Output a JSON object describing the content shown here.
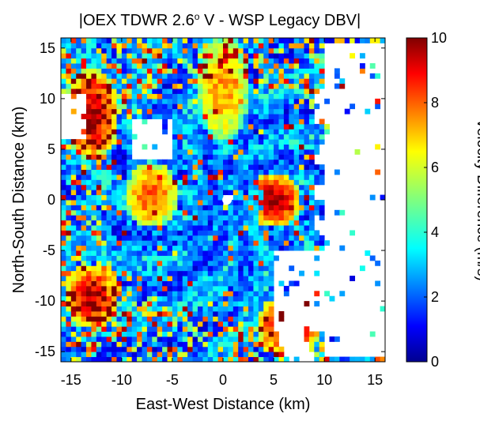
{
  "chart_data": {
    "type": "heatmap",
    "title": {
      "prefix": "|OEX TDWR 2.6",
      "superscript": "o",
      "suffix": " V - WSP Legacy DBV|"
    },
    "xlabel": "East-West Distance (km)",
    "ylabel": "North-South Distance (km)",
    "colorbar_label": "Velocity Difference (m/s)",
    "xlim": [
      -16,
      16
    ],
    "ylim": [
      -16,
      16
    ],
    "clim": [
      0,
      10
    ],
    "x_ticks": [
      -15,
      -10,
      -5,
      0,
      5,
      10,
      15
    ],
    "y_ticks": [
      -15,
      -10,
      -5,
      0,
      5,
      10,
      15
    ],
    "colorbar_ticks": [
      0,
      2,
      4,
      6,
      8,
      10
    ],
    "x_tick_labels": [
      "-15",
      "-10",
      "-5",
      "0",
      "5",
      "10",
      "15"
    ],
    "y_tick_labels": [
      "-15",
      "-10",
      "-5",
      "0",
      "5",
      "10",
      "15"
    ],
    "colorbar_tick_labels": [
      "0",
      "2",
      "4",
      "6",
      "8",
      "10"
    ],
    "colormap": "jet",
    "radar_center_km": [
      0.4,
      0.0
    ],
    "high_difference_regions": [
      {
        "x": [
          3,
          7
        ],
        "y": [
          -2,
          2
        ],
        "level": 8.8
      },
      {
        "x": [
          -15,
          -11
        ],
        "y": [
          5,
          12
        ],
        "level": 8.5
      },
      {
        "x": [
          -15,
          -11
        ],
        "y": [
          -12,
          -7
        ],
        "level": 8.4
      },
      {
        "x": [
          4,
          9
        ],
        "y": [
          -15,
          -10
        ],
        "level": 8.3
      },
      {
        "x": [
          -2,
          2
        ],
        "y": [
          7,
          15
        ],
        "level": 6.5
      },
      {
        "x": [
          -9,
          -5
        ],
        "y": [
          -2,
          3
        ],
        "level": 7.2
      }
    ],
    "missing_regions": [
      {
        "x": [
          10,
          16
        ],
        "y": [
          -15.5,
          15.5
        ]
      },
      {
        "x": [
          -9,
          -5
        ],
        "y": [
          4,
          8
        ]
      },
      {
        "x": [
          -16,
          -13.5
        ],
        "y": [
          6,
          10.5
        ]
      },
      {
        "x": [
          5,
          10
        ],
        "y": [
          -13,
          -5
        ]
      },
      {
        "x": [
          -0.1,
          0.9
        ],
        "y": [
          -0.5,
          0.5
        ]
      }
    ]
  }
}
